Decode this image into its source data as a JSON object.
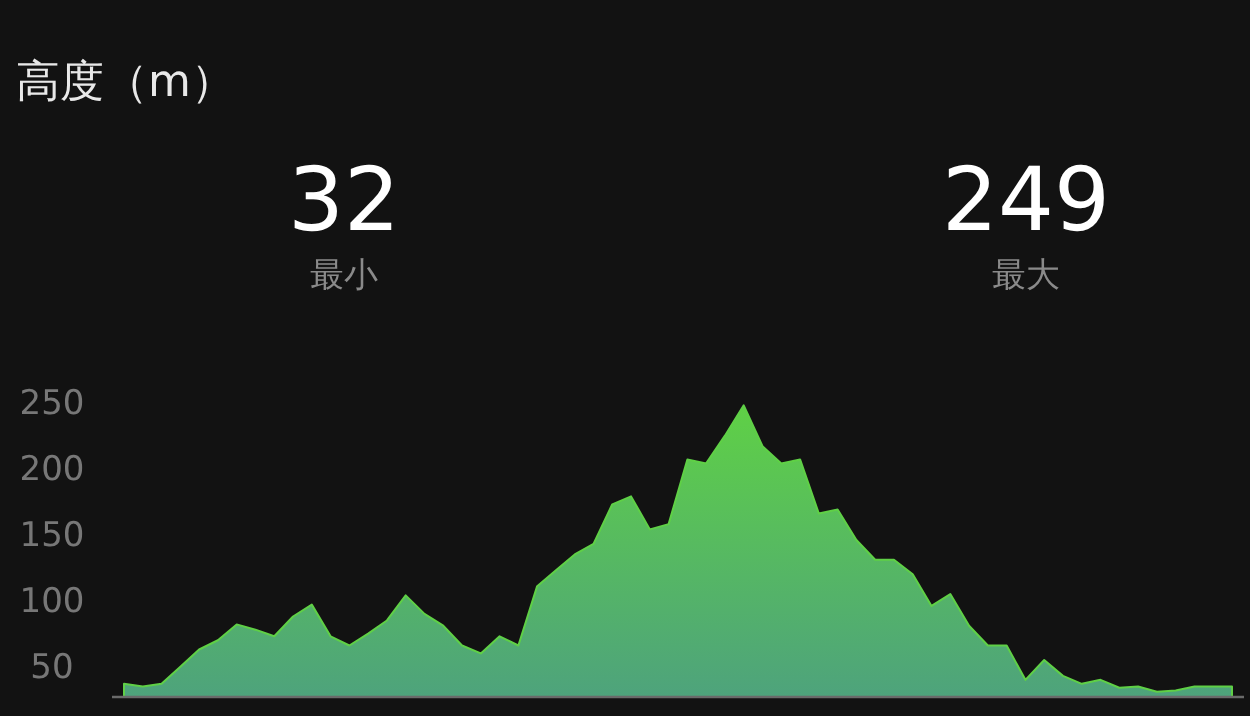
{
  "chart_data": {
    "type": "area",
    "title": "高度（m）",
    "annotations": [
      "32",
      "最小",
      "249",
      "最大"
    ],
    "color": "#5fd046",
    "ylim": [
      28,
      250
    ],
    "yticks": [
      50,
      100,
      150,
      200,
      250
    ],
    "tick_labels": "y",
    "grid": false,
    "categories": [
      null,
      null,
      null,
      null,
      null,
      null,
      null,
      null,
      null,
      null,
      null,
      null,
      null,
      null,
      null,
      null,
      null,
      null,
      null,
      null,
      null,
      null,
      null,
      null,
      null,
      null,
      null,
      null,
      null,
      null,
      null,
      null,
      null,
      null,
      null,
      null,
      null,
      null,
      null,
      null,
      null,
      null,
      null,
      null,
      null,
      null,
      null,
      null,
      null,
      null,
      null,
      null,
      null,
      null,
      null,
      null,
      null,
      null,
      null,
      null
    ],
    "values": [
      38,
      36,
      38,
      51,
      64,
      71,
      83,
      79,
      74,
      89,
      98,
      74,
      67,
      76,
      86,
      105,
      91,
      82,
      67,
      61,
      74,
      67,
      112,
      124,
      136,
      144,
      174,
      180,
      155,
      159,
      208,
      205,
      226,
      249,
      218,
      205,
      208,
      167,
      170,
      147,
      132,
      132,
      121,
      97,
      106,
      82,
      67,
      67,
      41,
      56,
      44,
      38,
      41,
      35,
      36,
      32,
      33,
      36,
      36,
      36
    ]
  }
}
